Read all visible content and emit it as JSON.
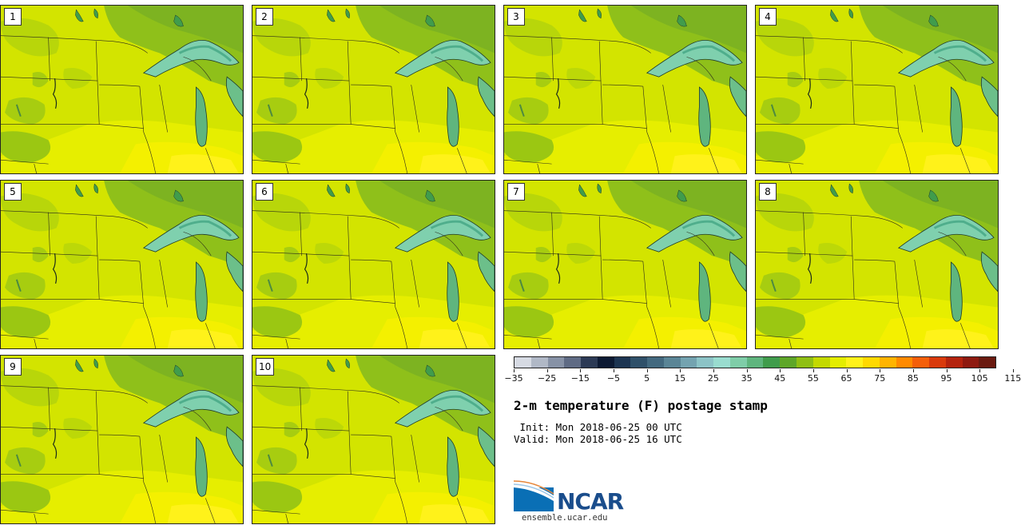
{
  "panels": [
    {
      "label": "1"
    },
    {
      "label": "2"
    },
    {
      "label": "3"
    },
    {
      "label": "4"
    },
    {
      "label": "5"
    },
    {
      "label": "6"
    },
    {
      "label": "7"
    },
    {
      "label": "8"
    },
    {
      "label": "9"
    },
    {
      "label": "10"
    }
  ],
  "colorbar": {
    "colors": [
      "#d6dae3",
      "#b0b8c6",
      "#8792a6",
      "#5f6b84",
      "#2c3a55",
      "#0d1a33",
      "#1d3552",
      "#2f5069",
      "#43697f",
      "#5a8596",
      "#74a3b0",
      "#8cc3c6",
      "#99dccf",
      "#7fcda8",
      "#5fb57e",
      "#409c4c",
      "#5ea628",
      "#8fbf14",
      "#c3d900",
      "#e4ed00",
      "#fff21a",
      "#ffd900",
      "#ffb400",
      "#ff8a00",
      "#f45f0a",
      "#d93a0c",
      "#b4230e",
      "#8e1a10",
      "#6a1a10"
    ],
    "tick_labels": [
      "−35",
      "−25",
      "−15",
      "−5",
      "5",
      "15",
      "25",
      "35",
      "45",
      "55",
      "65",
      "75",
      "85",
      "95",
      "105",
      "115"
    ]
  },
  "title": "2-m temperature (F) postage stamp",
  "init_line": " Init: Mon 2018-06-25 00 UTC",
  "valid_line": "Valid: Mon 2018-06-25 16 UTC",
  "logo_text": "NCAR",
  "website": "ensemble.ucar.edu"
}
